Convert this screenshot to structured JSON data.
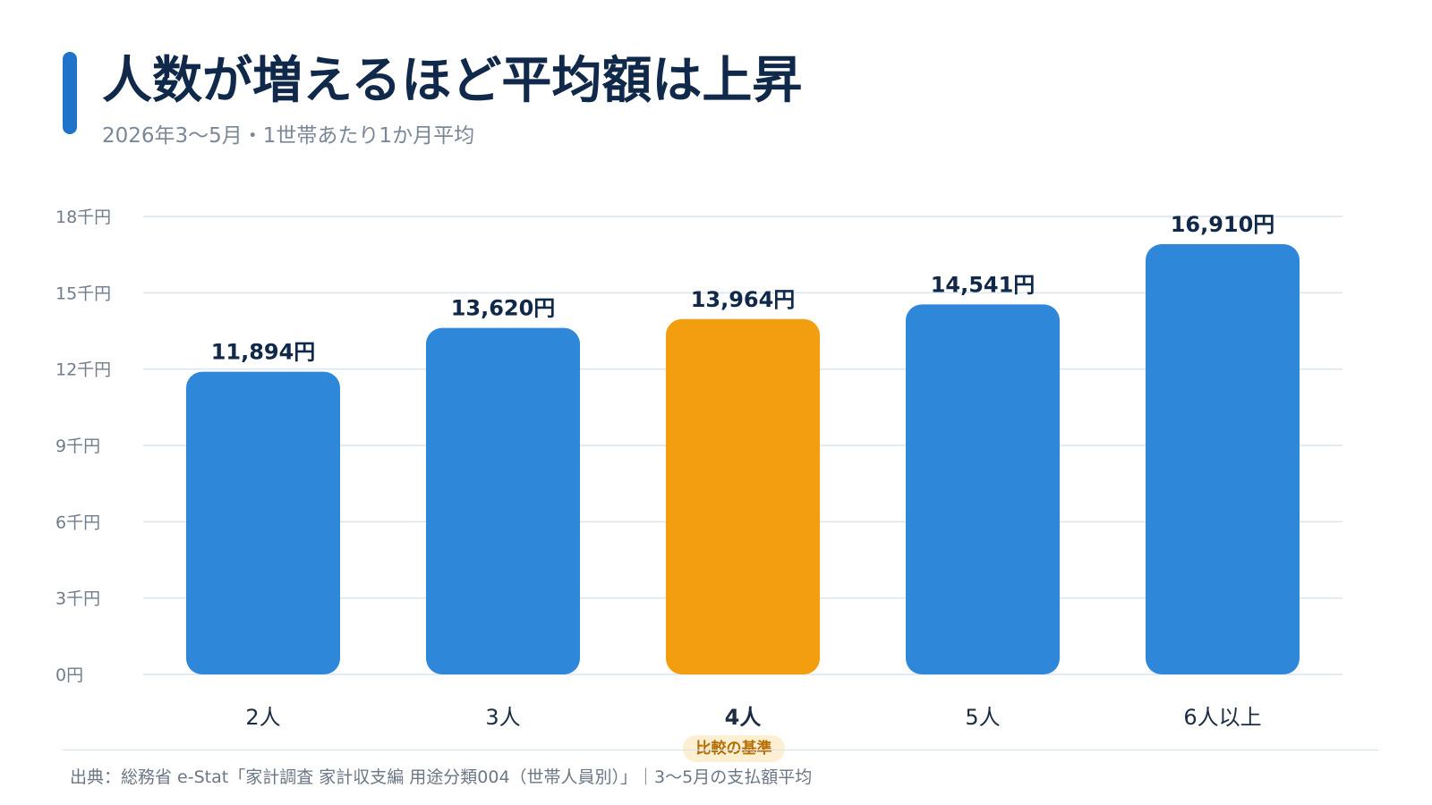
{
  "header": {
    "title": "人数が増えるほど平均額は上昇",
    "subtitle": "2026年3〜5月・1世帯あたり1か月平均"
  },
  "colors": {
    "accent": "#1f74c9",
    "bar": "#2e87d8",
    "highlight": "#f39e0e",
    "title": "#10294a"
  },
  "chart_data": {
    "type": "bar",
    "categories": [
      "2人",
      "3人",
      "4人",
      "5人",
      "6人以上"
    ],
    "values": [
      11894,
      13620,
      13964,
      14541,
      16910
    ],
    "value_labels": [
      "11,894円",
      "13,620円",
      "13,964円",
      "14,541円",
      "16,910円"
    ],
    "highlight_index": 2,
    "ylim": [
      0,
      18000
    ],
    "yticks": [
      0,
      3000,
      6000,
      9000,
      12000,
      15000,
      18000
    ],
    "ytick_labels": [
      "0円",
      "3千円",
      "6千円",
      "9千円",
      "12千円",
      "15千円",
      "18千円"
    ],
    "grid": true,
    "xlabel": "",
    "ylabel": ""
  },
  "annotation": {
    "baseline_badge": "比較の基準"
  },
  "footer": {
    "source": "出典：総務省 e-Stat「家計調査 家計収支編 用途分類004（世帯人員別）」｜3〜5月の支払額平均"
  }
}
